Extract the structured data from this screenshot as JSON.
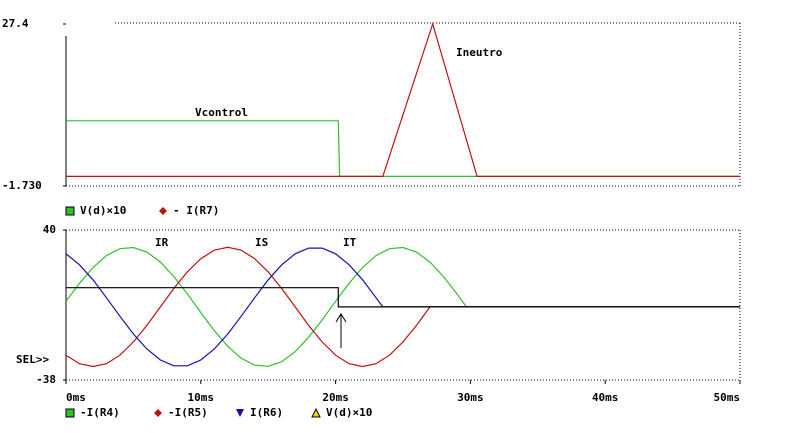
{
  "chart_data": [
    {
      "type": "line",
      "xlim": [
        0,
        50
      ],
      "ylim": [
        -1.73,
        27.4
      ],
      "yticks": [
        {
          "value": -1.73,
          "label": "-1.730"
        },
        27.4
      ],
      "series": [
        {
          "name": "V(d)×10",
          "color": "#30c030",
          "marker": "square",
          "x": [
            0,
            20.2,
            20.3,
            50
          ],
          "values": [
            10,
            10,
            0,
            0
          ]
        },
        {
          "name": "- I(R7)",
          "color": "#c01010",
          "marker": "diamond",
          "x": [
            0,
            23.5,
            27.2,
            30.5,
            50
          ],
          "values": [
            0,
            0,
            27.4,
            0,
            0
          ]
        }
      ],
      "annotations": [
        "Vcontrol",
        "Ineutro"
      ]
    },
    {
      "type": "line",
      "xlim": [
        0,
        50
      ],
      "ylim": [
        -38,
        40
      ],
      "yticks": [
        -38,
        40
      ],
      "xticks": [
        {
          "value": 0,
          "label": "0ms"
        },
        {
          "value": 10,
          "label": "10ms"
        },
        {
          "value": 20,
          "label": "20ms"
        },
        {
          "value": 30,
          "label": "30ms"
        },
        {
          "value": 40,
          "label": "40ms"
        },
        {
          "value": 50,
          "label": "50ms"
        }
      ],
      "series": [
        {
          "name": "-I(R4)",
          "color": "#30c030",
          "marker": "square",
          "x": [
            0,
            1,
            2,
            3,
            4,
            5,
            6,
            7,
            8,
            9,
            10,
            11,
            12,
            13,
            14,
            15,
            16,
            17,
            18,
            19,
            20,
            21,
            22,
            23,
            24,
            25,
            26,
            27,
            28,
            29,
            29.7,
            50
          ],
          "values": [
            2.9,
            12.3,
            20.5,
            26.7,
            30.3,
            30.9,
            28.5,
            23.3,
            15.8,
            6.8,
            -2.9,
            -12.3,
            -20.5,
            -26.7,
            -30.3,
            -30.9,
            -28.5,
            -23.3,
            -15.8,
            -6.8,
            2.9,
            12.3,
            20.5,
            26.7,
            30.3,
            30.9,
            28.5,
            23.3,
            15.8,
            6.8,
            0,
            0
          ]
        },
        {
          "name": "-I(R5)",
          "color": "#c01010",
          "marker": "diamond",
          "x": [
            0,
            1,
            2,
            3,
            4,
            5,
            6,
            7,
            8,
            9,
            10,
            11,
            12,
            13,
            14,
            15,
            16,
            17,
            18,
            19,
            20,
            21,
            22,
            23,
            24,
            25,
            26,
            27,
            50
          ],
          "values": [
            -25.1,
            -29.5,
            -31,
            -29.5,
            -25.1,
            -18.2,
            -9.6,
            0,
            9.6,
            18.2,
            25.1,
            29.5,
            31,
            29.5,
            25.1,
            18.2,
            9.6,
            0,
            -9.6,
            -18.2,
            -25.1,
            -29.5,
            -31,
            -29.5,
            -25.1,
            -18.2,
            -9.6,
            0,
            0
          ]
        },
        {
          "name": "I(R6)",
          "color": "#1010b0",
          "marker": "triangle-down",
          "x": [
            0,
            1,
            2,
            3,
            4,
            5,
            6,
            7,
            8,
            9,
            10,
            11,
            12,
            13,
            14,
            15,
            16,
            17,
            18,
            19,
            20,
            21,
            22,
            23,
            23.5,
            50
          ],
          "values": [
            27.6,
            21.9,
            14.1,
            4.8,
            -4.8,
            -14.1,
            -21.9,
            -27.6,
            -30.6,
            -30.6,
            -27.6,
            -21.9,
            -14.1,
            -4.8,
            4.8,
            14.1,
            21.9,
            27.6,
            30.6,
            30.6,
            27.6,
            21.9,
            14.1,
            4.8,
            0,
            0
          ]
        },
        {
          "name": "V(d)×10",
          "color": "#000000",
          "marker": "triangle-up",
          "marker_color": "#e0e000",
          "x": [
            0,
            20.2,
            20.2,
            50
          ],
          "values": [
            10,
            10,
            0,
            0
          ]
        }
      ],
      "annotations": [
        "IR",
        "IS",
        "IT",
        "SEL>>"
      ]
    }
  ]
}
